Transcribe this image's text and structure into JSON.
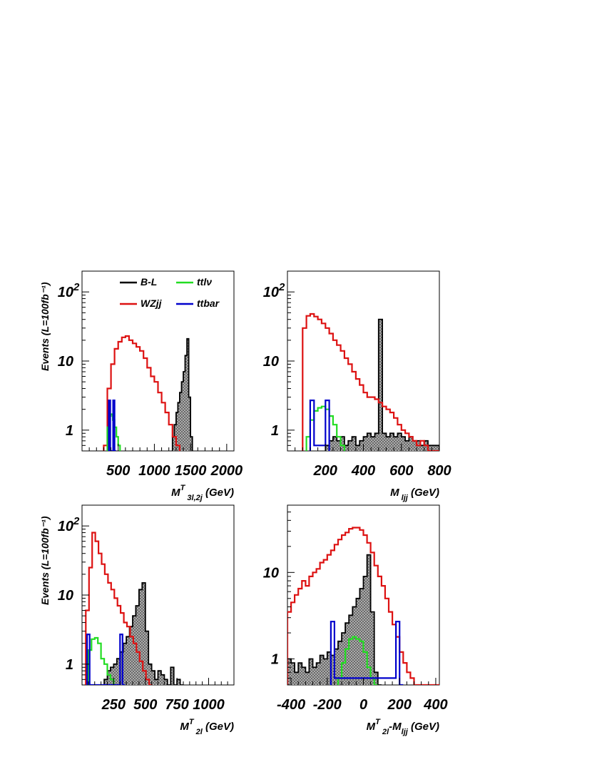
{
  "figure_ylabel": "Events (L=100fb⁻¹)",
  "legend": {
    "entries": [
      {
        "label": "B-L",
        "color": "#000000"
      },
      {
        "label": "ttlν",
        "color": "#22dd22"
      },
      {
        "label": "WZjj",
        "color": "#dd1111"
      },
      {
        "label": "ttbar",
        "color": "#0000cc"
      }
    ]
  },
  "colors": {
    "bl": "#000000",
    "ttlnu": "#22dd22",
    "wzjj": "#dd1111",
    "ttbar": "#0000cc"
  },
  "chart_data": [
    {
      "type": "area",
      "xlabel": "M",
      "xlabel_sup": "T",
      "xlabel_sub": "3l,2j",
      "xlabel_unit": "(GeV)",
      "xlim": [
        0,
        2100
      ],
      "ylim": [
        0.5,
        200
      ],
      "log_y": true,
      "xticks": [
        500,
        1000,
        1500,
        2000
      ],
      "xtick_labels": [
        "500",
        "1000",
        "1500",
        "2000"
      ],
      "ytick_labels": [
        "1",
        "10",
        "10"
      ],
      "ytick_sup": "2",
      "series": [
        {
          "name": "WZjj",
          "x0": 300,
          "dx": 50,
          "values": [
            0.6,
            4,
            9,
            15,
            19,
            22,
            23,
            20,
            18,
            16,
            14,
            11,
            8,
            6,
            5,
            3.5,
            2.5,
            1.8,
            1.2,
            0.8,
            0.6
          ]
        },
        {
          "name": "ttlν",
          "x0": 350,
          "dx": 25,
          "values": [
            1.1,
            1.6,
            1.7,
            1.4,
            1.1,
            0.8,
            0.6
          ]
        },
        {
          "name": "ttbar",
          "x0": 370,
          "dx": 20,
          "values": [
            2.7,
            0.5,
            0.5,
            2.7,
            0.5
          ]
        },
        {
          "name": "B-L",
          "x0": 1250,
          "dx": 25,
          "values": [
            0.8,
            1.2,
            1.8,
            2.5,
            3.5,
            5,
            7,
            12,
            21,
            3,
            0.8
          ]
        }
      ]
    },
    {
      "type": "area",
      "xlabel": "M",
      "xlabel_sup": "",
      "xlabel_sub": "ljj",
      "xlabel_unit": "(GeV)",
      "xlim": [
        0,
        800
      ],
      "ylim": [
        0.5,
        200
      ],
      "log_y": true,
      "xticks": [
        200,
        400,
        600,
        800
      ],
      "xtick_labels": [
        "200",
        "400",
        "600",
        "800"
      ],
      "ytick_labels": [
        "1",
        "10",
        "10"
      ],
      "ytick_sup": "2",
      "series": [
        {
          "name": "WZjj",
          "x0": 80,
          "dx": 20,
          "values": [
            30,
            45,
            48,
            44,
            40,
            35,
            30,
            25,
            20,
            17,
            14,
            11,
            9,
            7,
            5.5,
            4.5,
            3.5,
            3,
            3,
            2.8,
            2.5,
            2.2,
            2,
            1.8,
            1.5,
            1.2,
            1.0,
            0.9,
            0.8,
            0.7,
            0.6,
            0.7,
            0.6,
            0.5,
            0.5,
            0.5
          ]
        },
        {
          "name": "ttlν",
          "x0": 100,
          "dx": 20,
          "values": [
            0.8,
            1.4,
            1.9,
            2.1,
            2.2,
            2.0,
            1.6,
            1.2,
            0.8,
            0.6
          ]
        },
        {
          "name": "ttbar",
          "x0": 120,
          "dx": 20,
          "values": [
            2.7,
            0.6,
            0.6,
            0.6,
            2.7
          ]
        },
        {
          "name": "B-L",
          "x0": 200,
          "dx": 20,
          "values": [
            0.6,
            0.7,
            0.8,
            0.7,
            0.8,
            0.6,
            0.7,
            0.8,
            0.6,
            0.7,
            0.8,
            0.9,
            0.8,
            0.9,
            40,
            0.9,
            0.8,
            0.9,
            0.8,
            0.9,
            0.8,
            0.7,
            0.8,
            0.7,
            0.7,
            0.6,
            0.7,
            0.6,
            0.6,
            0.6
          ]
        }
      ]
    },
    {
      "type": "area",
      "xlabel": "M",
      "xlabel_sup": "T",
      "xlabel_sub": "2l",
      "xlabel_unit": "(GeV)",
      "xlim": [
        0,
        1200
      ],
      "ylim": [
        0.5,
        200
      ],
      "log_y": true,
      "xticks": [
        250,
        500,
        750,
        1000
      ],
      "xtick_labels": [
        "250",
        "500",
        "750",
        "1000"
      ],
      "ytick_labels": [
        "1",
        "10",
        "10"
      ],
      "ytick_sup": "2",
      "series": [
        {
          "name": "WZjj",
          "x0": 30,
          "dx": 25,
          "values": [
            6,
            25,
            80,
            60,
            40,
            28,
            20,
            15,
            12,
            9,
            7,
            5.5,
            4,
            3.5,
            2.5,
            2,
            1.5,
            1.1,
            0.8,
            0.6,
            0.5
          ]
        },
        {
          "name": "ttlν",
          "x0": 50,
          "dx": 25,
          "values": [
            1.6,
            2.3,
            2.4,
            2.0,
            1.2,
            1.0,
            0.7,
            0.6
          ]
        },
        {
          "name": "ttbar",
          "x0": 40,
          "dx": 20,
          "values": [
            2.7,
            0.5,
            0.5,
            0.5,
            0.5,
            0.5,
            0.5,
            0.5,
            0.5,
            0.5,
            0.5,
            0.5,
            0.5,
            2.7,
            0.5
          ]
        },
        {
          "name": "B-L",
          "x0": 175,
          "dx": 25,
          "values": [
            0.6,
            0.8,
            0.9,
            1.0,
            1.2,
            1.5,
            2.0,
            2.5,
            3.5,
            5,
            7,
            12,
            15,
            3,
            1.0,
            0.8,
            0.6,
            0.8,
            0.7,
            0.6,
            0.5,
            0.9,
            0.5,
            0.6,
            0.5
          ]
        }
      ]
    },
    {
      "type": "area",
      "xlabel": "M",
      "xlabel_sup": "T",
      "xlabel_sub": "2l",
      "xlabel_tail": "-M",
      "xlabel_tail_sub": "ljj",
      "xlabel_unit": "(GeV)",
      "xlim": [
        -420,
        420
      ],
      "ylim": [
        0.5,
        60
      ],
      "log_y": true,
      "xticks": [
        -400,
        -200,
        0,
        200,
        400
      ],
      "xtick_labels": [
        "-400",
        "-200",
        "0",
        "200",
        "400"
      ],
      "ytick_labels": [
        "1",
        "10"
      ],
      "ytick_sup": "",
      "series": [
        {
          "name": "WZjj",
          "x0": -420,
          "dx": 20,
          "values": [
            3.5,
            4.5,
            5.5,
            6.5,
            8,
            7,
            9,
            10,
            11,
            13,
            14,
            16,
            18,
            21,
            24,
            27,
            29,
            32,
            33,
            33,
            31,
            27,
            22,
            17,
            12,
            9,
            7,
            5,
            3.5,
            2.5,
            1.8,
            1.2,
            0.9,
            0.7,
            0.6,
            0.5,
            0.5,
            0.5,
            0.5,
            0.5,
            0.5,
            0.5
          ]
        },
        {
          "name": "ttlν",
          "x0": -140,
          "dx": 20,
          "values": [
            0.6,
            0.9,
            1.3,
            1.7,
            1.8,
            1.7,
            1.6,
            1.2,
            0.8,
            0.6,
            0.5
          ]
        },
        {
          "name": "ttbar",
          "x0": -180,
          "dx": 20,
          "values": [
            2.7,
            0.6,
            0.6,
            0.6,
            0.6,
            0.6,
            0.6,
            0.6,
            0.6,
            0.6,
            0.6,
            0.6,
            0.6,
            0.6,
            0.6,
            0.6,
            0.6,
            0.6,
            2.7,
            0.5
          ]
        },
        {
          "name": "B-L",
          "x0": -420,
          "dx": 20,
          "values": [
            1.0,
            0.9,
            0.7,
            0.9,
            0.8,
            0.7,
            1.0,
            0.8,
            0.9,
            1.1,
            1.0,
            1.2,
            1.1,
            1.3,
            1.6,
            2.0,
            2.6,
            3.2,
            4.0,
            5.0,
            6.5,
            9,
            16,
            3.5,
            0.7,
            0.5
          ]
        }
      ]
    }
  ]
}
